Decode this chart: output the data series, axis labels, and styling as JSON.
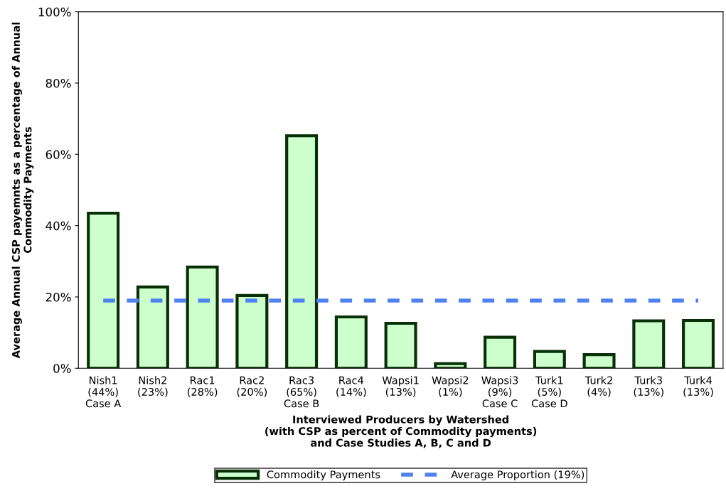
{
  "chart_data": {
    "type": "bar",
    "xlabel": "Interviewed Producers by Watershed\n(with CSP as percent of Commodity payments)\nand Case Studies A, B, C and D",
    "ylabel": "Average Annual CSP payemnts as a percentage of Annual\nCommodity Payments",
    "categories": [
      "Nish1\n(44%)\nCase A",
      "Nish2\n(23%)",
      "Rac1\n(28%)",
      "Rac2\n(20%)",
      "Rac3\n(65%)\nCase B",
      "Rac4\n(14%)",
      "Wapsi1\n(13%)",
      "Wapsi2\n(1%)",
      "Wapsi3\n(9%)\nCase C",
      "Turk1\n(5%)\nCase D",
      "Turk2\n(4%)",
      "Turk3\n(13%)",
      "Turk4\n(13%)"
    ],
    "series": [
      {
        "name": "Commodity Payments",
        "color": "#ccffcc",
        "values": [
          43.5,
          22.8,
          28.4,
          20.4,
          65.2,
          14.4,
          12.6,
          1.3,
          8.7,
          4.7,
          3.8,
          13.3,
          13.4
        ]
      },
      {
        "name": "Average Proportion (19%)",
        "type": "line",
        "color": "#4f81f0",
        "line_style": "dashed",
        "marker": "none",
        "values": [
          19,
          19,
          19,
          19,
          19,
          19,
          19,
          19,
          19,
          19,
          19,
          19,
          19
        ]
      }
    ],
    "ylim": [
      0,
      100
    ],
    "yticks": [
      {
        "value": 0,
        "label": "0%"
      },
      {
        "value": 20,
        "label": "20%"
      },
      {
        "value": 40,
        "label": "40%"
      },
      {
        "value": 60,
        "label": "60%"
      },
      {
        "value": 80,
        "label": "80%"
      },
      {
        "value": 100,
        "label": "100%"
      }
    ],
    "grid": false,
    "legend": "bottom"
  }
}
